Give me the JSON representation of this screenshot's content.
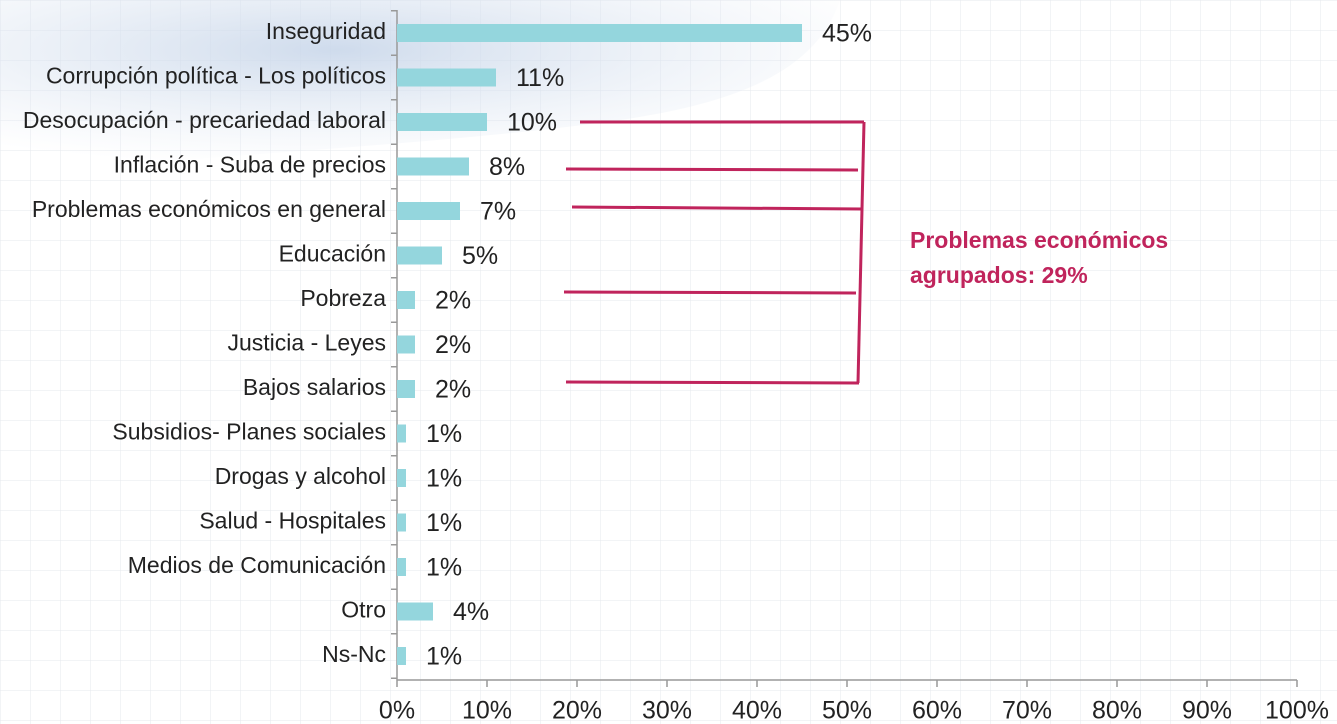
{
  "chart_data": {
    "type": "bar",
    "orientation": "horizontal",
    "categories": [
      "Inseguridad",
      "Corrupción política - Los políticos",
      "Desocupación - precariedad laboral",
      "Inflación - Suba de precios",
      "Problemas económicos en general",
      "Educación",
      "Pobreza",
      "Justicia - Leyes",
      "Bajos salarios",
      "Subsidios- Planes sociales",
      "Drogas y alcohol",
      "Salud - Hospitales",
      "Medios de Comunicación",
      "Otro",
      "Ns-Nc"
    ],
    "values": [
      45,
      11,
      10,
      8,
      7,
      5,
      2,
      2,
      2,
      1,
      1,
      1,
      1,
      4,
      1
    ],
    "value_labels": [
      "45%",
      "11%",
      "10%",
      "8%",
      "7%",
      "5%",
      "2%",
      "2%",
      "2%",
      "1%",
      "1%",
      "1%",
      "1%",
      "4%",
      "1%"
    ],
    "color": "#94d6dd",
    "xlim": [
      0,
      100
    ],
    "xticks": [
      {
        "value": 0,
        "label": "0%"
      },
      {
        "value": 10,
        "label": "10%"
      },
      {
        "value": 20,
        "label": "20%"
      },
      {
        "value": 30,
        "label": "30%"
      },
      {
        "value": 40,
        "label": "40%"
      },
      {
        "value": 50,
        "label": "50%"
      },
      {
        "value": 60,
        "label": "60%"
      },
      {
        "value": 70,
        "label": "70%"
      },
      {
        "value": 80,
        "label": "80%"
      },
      {
        "value": 90,
        "label": "90%"
      },
      {
        "value": 100,
        "label": "100%"
      }
    ],
    "annotation": [
      "Problemas económicos",
      "agrupados: 29%"
    ]
  }
}
